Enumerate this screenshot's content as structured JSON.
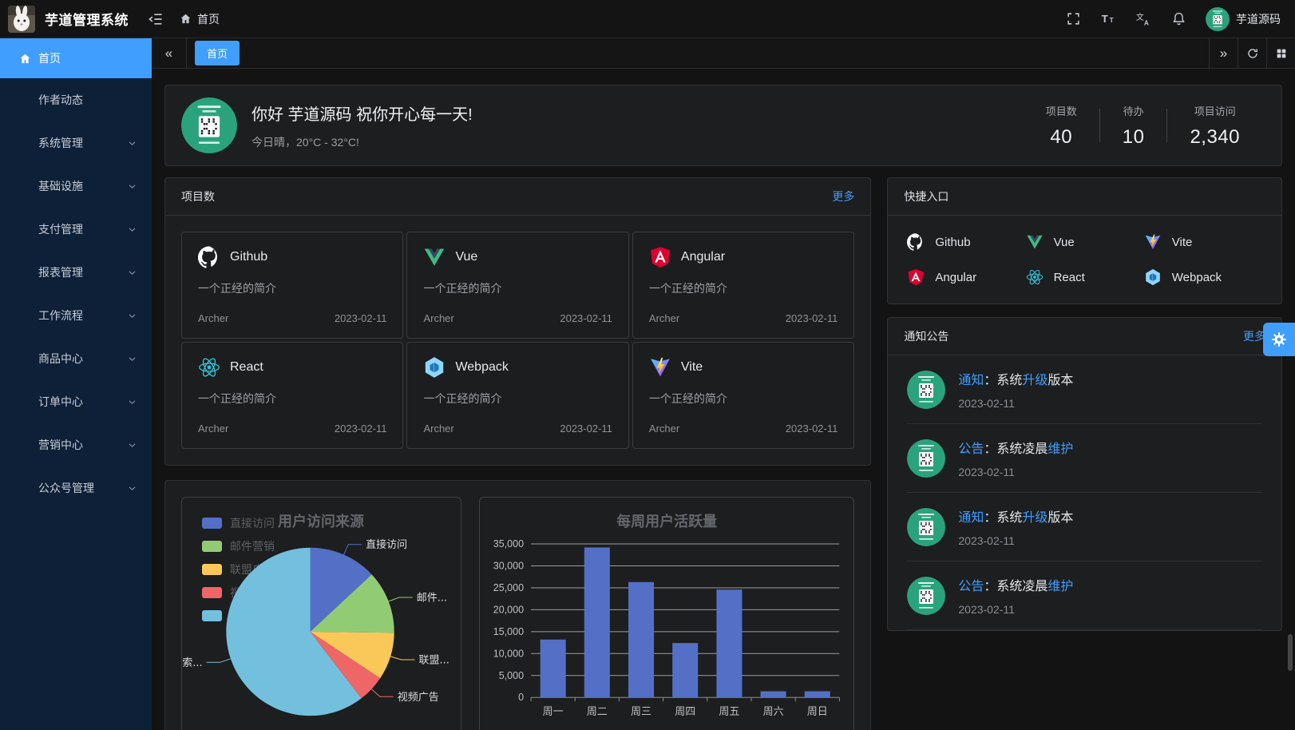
{
  "app": {
    "title": "芋道管理系统",
    "logo": "rabbit-logo"
  },
  "topbar": {
    "breadcrumb_home": "首页",
    "username": "芋道源码",
    "icons": [
      "menu-fold-icon",
      "home-icon",
      "fullscreen-icon",
      "font-size-icon",
      "locale-icon",
      "bell-icon"
    ]
  },
  "tabbar": {
    "active_tab": "首页"
  },
  "sidebar": {
    "items": [
      {
        "label": "首页",
        "active": true,
        "icon": "home-icon",
        "has_children": false
      },
      {
        "label": "作者动态",
        "active": false,
        "has_children": false
      },
      {
        "label": "系统管理",
        "active": false,
        "has_children": true
      },
      {
        "label": "基础设施",
        "active": false,
        "has_children": true
      },
      {
        "label": "支付管理",
        "active": false,
        "has_children": true
      },
      {
        "label": "报表管理",
        "active": false,
        "has_children": true
      },
      {
        "label": "工作流程",
        "active": false,
        "has_children": true
      },
      {
        "label": "商品中心",
        "active": false,
        "has_children": true
      },
      {
        "label": "订单中心",
        "active": false,
        "has_children": true
      },
      {
        "label": "营销中心",
        "active": false,
        "has_children": true
      },
      {
        "label": "公众号管理",
        "active": false,
        "has_children": true
      }
    ]
  },
  "welcome": {
    "greeting": "你好 芋道源码 祝你开心每一天!",
    "weather": "今日晴，20°C - 32°C!",
    "stats": [
      {
        "label": "项目数",
        "value": "40"
      },
      {
        "label": "待办",
        "value": "10"
      },
      {
        "label": "项目访问",
        "value": "2,340"
      }
    ]
  },
  "projects": {
    "title": "项目数",
    "more": "更多",
    "items": [
      {
        "name": "Github",
        "icon": "github-icon",
        "desc": "一个正经的简介",
        "author": "Archer",
        "date": "2023-02-11"
      },
      {
        "name": "Vue",
        "icon": "vue-icon",
        "desc": "一个正经的简介",
        "author": "Archer",
        "date": "2023-02-11"
      },
      {
        "name": "Angular",
        "icon": "angular-icon",
        "desc": "一个正经的简介",
        "author": "Archer",
        "date": "2023-02-11"
      },
      {
        "name": "React",
        "icon": "react-icon",
        "desc": "一个正经的简介",
        "author": "Archer",
        "date": "2023-02-11"
      },
      {
        "name": "Webpack",
        "icon": "webpack-icon",
        "desc": "一个正经的简介",
        "author": "Archer",
        "date": "2023-02-11"
      },
      {
        "name": "Vite",
        "icon": "vite-icon",
        "desc": "一个正经的简介",
        "author": "Archer",
        "date": "2023-02-11"
      }
    ]
  },
  "shortcuts": {
    "title": "快捷入口",
    "items": [
      {
        "name": "Github",
        "icon": "github-icon"
      },
      {
        "name": "Vue",
        "icon": "vue-icon"
      },
      {
        "name": "Vite",
        "icon": "vite-icon"
      },
      {
        "name": "Angular",
        "icon": "angular-icon"
      },
      {
        "name": "React",
        "icon": "react-icon"
      },
      {
        "name": "Webpack",
        "icon": "webpack-icon"
      }
    ]
  },
  "notices": {
    "title": "通知公告",
    "more": "更多",
    "items": [
      {
        "segments": [
          {
            "text": "通知",
            "highlight": true
          },
          {
            "text": "：系统",
            "highlight": false
          },
          {
            "text": "升级",
            "highlight": true
          },
          {
            "text": "版本",
            "highlight": false
          }
        ],
        "date": "2023-02-11"
      },
      {
        "segments": [
          {
            "text": "公告",
            "highlight": true
          },
          {
            "text": "：系统凌晨",
            "highlight": false
          },
          {
            "text": "维护",
            "highlight": true
          }
        ],
        "date": "2023-02-11"
      },
      {
        "segments": [
          {
            "text": "通知",
            "highlight": true
          },
          {
            "text": "：系统",
            "highlight": false
          },
          {
            "text": "升级",
            "highlight": true
          },
          {
            "text": "版本",
            "highlight": false
          }
        ],
        "date": "2023-02-11"
      },
      {
        "segments": [
          {
            "text": "公告",
            "highlight": true
          },
          {
            "text": "：系统凌晨",
            "highlight": false
          },
          {
            "text": "维护",
            "highlight": true
          }
        ],
        "date": "2023-02-11"
      }
    ]
  },
  "settings_button": {
    "icon": "gear-icon"
  },
  "colors": {
    "accent": "#409eff",
    "card_bg": "#1d1e1f",
    "sidebar_bg": "#0d2038",
    "avatar_green": "#2aa37c",
    "pie_palette": [
      "#5470c6",
      "#91cc75",
      "#fac858",
      "#ee6666",
      "#73c0de"
    ],
    "bar_color": "#5470c6"
  },
  "chart_data": [
    {
      "type": "pie",
      "title": "用户访问来源",
      "labels": [
        "直接访问",
        "邮件营销",
        "联盟广告",
        "视频广告",
        "搜索引擎"
      ],
      "callout_labels": [
        "直接访问",
        "邮件...",
        "联盟...",
        "视频广告",
        "搜索..."
      ],
      "values": [
        335,
        310,
        234,
        135,
        1548
      ],
      "colors": [
        "#5470c6",
        "#91cc75",
        "#fac858",
        "#ee6666",
        "#73c0de"
      ],
      "legend_position": "left"
    },
    {
      "type": "bar",
      "title": "每周用户活跃量",
      "categories": [
        "周一",
        "周二",
        "周三",
        "周四",
        "周五",
        "周六",
        "周日"
      ],
      "values": [
        13200,
        34200,
        26300,
        12400,
        24600,
        1400,
        1400
      ],
      "ylim": [
        0,
        35000
      ],
      "ytick_step": 5000,
      "ytick_labels": [
        "0",
        "5,000",
        "10,000",
        "15,000",
        "20,000",
        "25,000",
        "30,000",
        "35,000"
      ],
      "bar_color": "#5470c6",
      "grid": true
    }
  ]
}
